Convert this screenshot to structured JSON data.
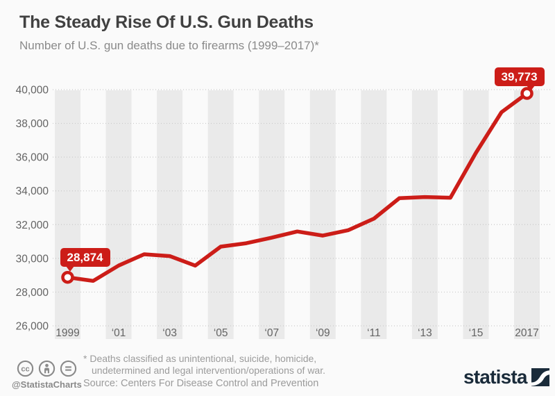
{
  "header": {
    "title": "The Steady Rise Of U.S. Gun Deaths",
    "subtitle": "Number of U.S. gun deaths due to firearms (1999–2017)*"
  },
  "chart_data": {
    "type": "line",
    "title": "The Steady Rise Of U.S. Gun Deaths",
    "x": [
      1999,
      2000,
      2001,
      2002,
      2003,
      2004,
      2005,
      2006,
      2007,
      2008,
      2009,
      2010,
      2011,
      2012,
      2013,
      2014,
      2015,
      2016,
      2017
    ],
    "values": [
      28874,
      28663,
      29573,
      30242,
      30136,
      29569,
      30694,
      30896,
      31224,
      31593,
      31347,
      31672,
      32351,
      33563,
      33636,
      33594,
      36252,
      38658,
      39773
    ],
    "ylim": [
      26000,
      40000
    ],
    "yticks": [
      {
        "value": 26000,
        "label": "26,000"
      },
      {
        "value": 28000,
        "label": "28,000"
      },
      {
        "value": 30000,
        "label": "30,000"
      },
      {
        "value": 32000,
        "label": "32,000"
      },
      {
        "value": 34000,
        "label": "34,000"
      },
      {
        "value": 36000,
        "label": "36,000"
      },
      {
        "value": 38000,
        "label": "38,000"
      },
      {
        "value": 40000,
        "label": "40,000"
      }
    ],
    "xticks": [
      {
        "index": 0,
        "label": "1999"
      },
      {
        "index": 2,
        "label": "‘01"
      },
      {
        "index": 4,
        "label": "‘03"
      },
      {
        "index": 6,
        "label": "‘05"
      },
      {
        "index": 8,
        "label": "‘07"
      },
      {
        "index": 10,
        "label": "‘09"
      },
      {
        "index": 12,
        "label": "‘11"
      },
      {
        "index": 14,
        "label": "‘13"
      },
      {
        "index": 16,
        "label": "‘15"
      },
      {
        "index": 18,
        "label": "2017"
      }
    ],
    "annotations": [
      {
        "index": 0,
        "label": "28,874",
        "align": "start",
        "name": "start-value-badge"
      },
      {
        "index": 18,
        "label": "39,773",
        "align": "end",
        "name": "end-value-badge"
      }
    ],
    "grid": "horizontal-dotted",
    "legend": "none",
    "colors": {
      "line": "#cc1d18",
      "band": "#eaeaea",
      "grid": "#c9c9c9",
      "axis": "#636363",
      "badge_text": "#ffffff",
      "background": "#fafafa",
      "logo_navy": "#1a2b3a",
      "footer_gray": "#8a8a8a"
    }
  },
  "footer": {
    "footnote_line1": "* Deaths classified as unintentional, suicide, homicide,",
    "footnote_line2": "undetermined and legal intervention/operations of war.",
    "source": "Source: Centers For Disease Control and Prevention",
    "credit": "@StatistaCharts",
    "logo_text": "statista",
    "license_icons": [
      "cc-icon",
      "attribution-person-icon",
      "no-derivatives-equals-icon"
    ]
  }
}
